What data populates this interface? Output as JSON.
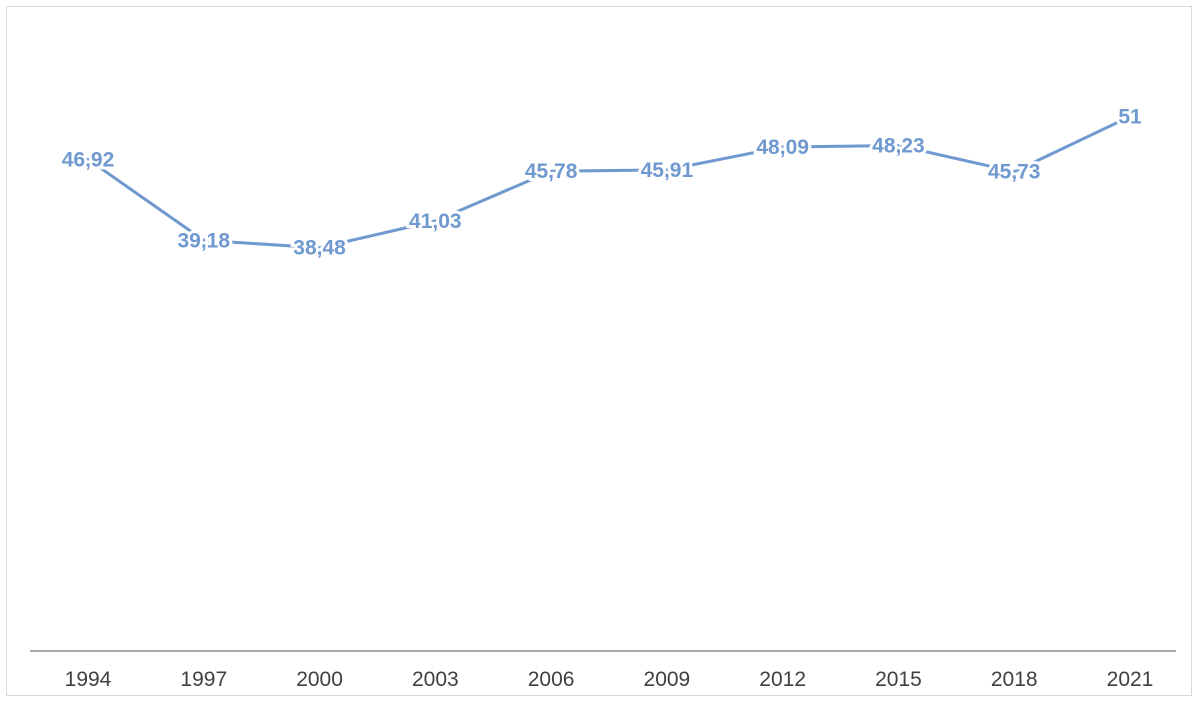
{
  "chart_data": {
    "type": "line",
    "title": "",
    "xlabel": "",
    "ylabel": "",
    "categories": [
      "1994",
      "1997",
      "2000",
      "2003",
      "2006",
      "2009",
      "2012",
      "2015",
      "2018",
      "2021"
    ],
    "series": [
      {
        "values": [
          46.92,
          39.18,
          38.48,
          41.03,
          45.78,
          45.91,
          48.09,
          48.23,
          45.73,
          51
        ],
        "labels": [
          "46,92",
          "39,18",
          "38,48",
          "41,03",
          "45,78",
          "45,91",
          "48,09",
          "48,23",
          "45,73",
          "51"
        ]
      }
    ],
    "ylim": [
      0,
      60
    ],
    "y_axis_visible": false,
    "grid": false,
    "legend": "none",
    "line_color": "#6f99cf",
    "label_color": "#6f99cf",
    "axis_color": "#8c8c8c"
  }
}
